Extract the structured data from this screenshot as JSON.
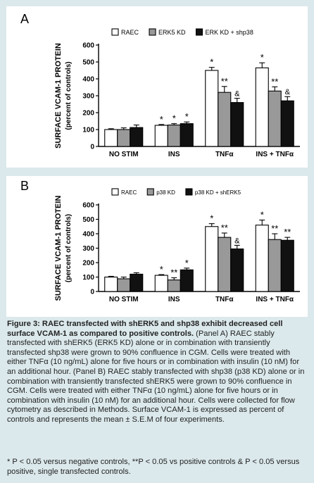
{
  "chart_data": [
    {
      "type": "bar",
      "panel_label": "A",
      "categories": [
        "NO STIM",
        "INS",
        "TNFα",
        "INS + TNFα"
      ],
      "series": [
        {
          "name": "RAEC",
          "values": [
            100,
            125,
            450,
            465
          ],
          "errors": [
            5,
            5,
            18,
            30
          ],
          "color": "#ffffff"
        },
        {
          "name": "ERK5 KD",
          "values": [
            100,
            127,
            320,
            328
          ],
          "errors": [
            10,
            8,
            35,
            25
          ],
          "color": "#999999"
        },
        {
          "name": "ERK KD + shp38",
          "values": [
            112,
            135,
            260,
            270
          ],
          "errors": [
            15,
            10,
            25,
            25
          ],
          "color": "#111111"
        }
      ],
      "annotations": [
        [
          "",
          "",
          ""
        ],
        [
          "*",
          "*",
          "*"
        ],
        [
          "*",
          "**",
          "&"
        ],
        [
          "*",
          "**",
          "&"
        ]
      ],
      "ylabel_line1": "SURFACE VCAM-1 PROTEIN",
      "ylabel_line2": "(percent of controls)",
      "yticks": [
        0,
        100,
        200,
        300,
        400,
        500,
        600
      ],
      "ylim": [
        0,
        600
      ],
      "legend_position": "top-right"
    },
    {
      "type": "bar",
      "panel_label": "B",
      "categories": [
        "NO STIM",
        "INS",
        "TNFα",
        "INS + TNFα"
      ],
      "series": [
        {
          "name": "RAEC",
          "values": [
            100,
            112,
            450,
            460
          ],
          "errors": [
            5,
            5,
            20,
            35
          ],
          "color": "#ffffff"
        },
        {
          "name": "p38 KD",
          "values": [
            88,
            80,
            375,
            360
          ],
          "errors": [
            12,
            15,
            30,
            40
          ],
          "color": "#999999"
        },
        {
          "name": "p38 KD + shERK5",
          "values": [
            120,
            150,
            295,
            355
          ],
          "errors": [
            10,
            12,
            25,
            20
          ],
          "color": "#111111"
        }
      ],
      "annotations": [
        [
          "",
          "",
          ""
        ],
        [
          "*",
          "**",
          "*"
        ],
        [
          "*",
          "**",
          "&"
        ],
        [
          "*",
          "**",
          "**"
        ]
      ],
      "ylabel_line1": "SURFACE VCAM-1 PROTEIN",
      "ylabel_line2": "(percent of controls)",
      "yticks": [
        0,
        100,
        200,
        300,
        400,
        500,
        600
      ],
      "ylim": [
        0,
        600
      ],
      "legend_position": "top-right"
    }
  ],
  "caption": {
    "title": "Figure 3: RAEC transfected with shERK5 and shp38 exhibit decreased cell surface VCAM-1 as compared to positive controls.",
    "body": " (Panel A) RAEC stably transfected with shERK5 (ERK5 KD) alone or in combination with transiently transfected shp38 were grown to 90% confluence in CGM. Cells were treated with either TNFα (10 ng/mL) alone for five hours or in combination with insulin (10 nM) for an additional hour. (Panel B) RAEC stably transfected with shp38 (p38 KD) alone or in combination with transiently transfected shERK5 were grown to 90% confluence in CGM. Cells were treated with either TNFα (10 ng/mL) alone for five hours or in combination with insulin (10 nM) for an additional hour. Cells were collected for flow cytometry as described in Methods. Surface VCAM-1 is expressed as percent of controls and represents the mean ± S.E.M of four experiments."
  },
  "footnote": "* P < 0.05 versus negative controls, **P < 0.05 vs positive controls & P < 0.05 versus positive, single transfected controls."
}
